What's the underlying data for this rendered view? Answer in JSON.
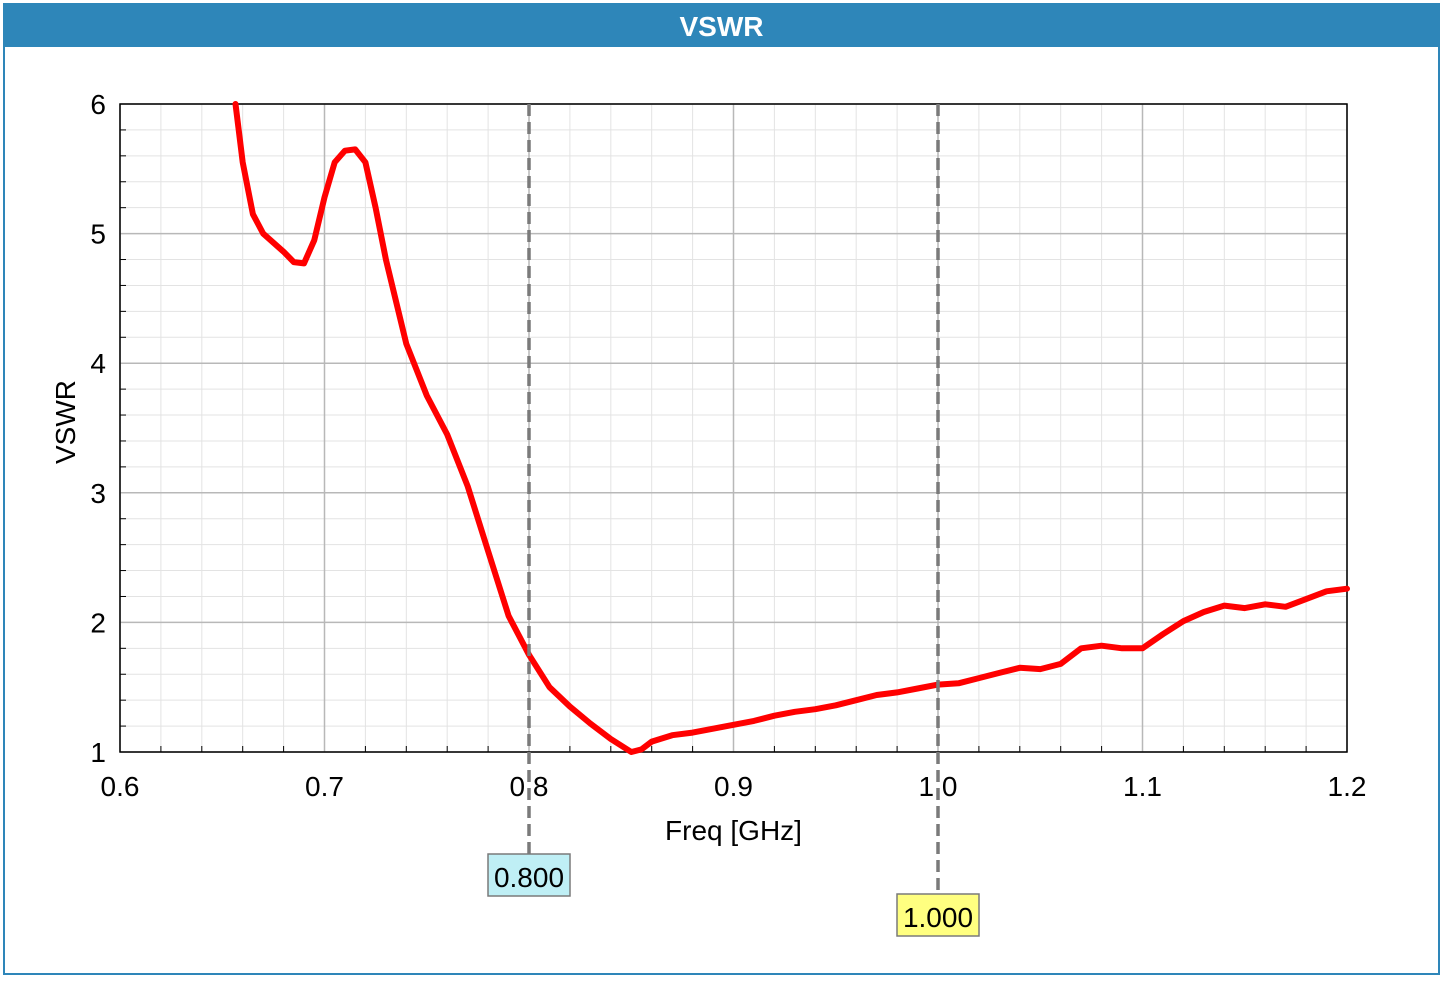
{
  "title": "VSWR",
  "chart_data": {
    "type": "line",
    "title": "VSWR",
    "xlabel": "Freq [GHz]",
    "ylabel": "VSWR",
    "xlim": [
      0.6,
      1.2
    ],
    "ylim": [
      1,
      6
    ],
    "x_ticks": [
      "0.6",
      "0.7",
      "0.8",
      "0.9",
      "1.0",
      "1.1",
      "1.2"
    ],
    "y_ticks": [
      "1",
      "2",
      "3",
      "4",
      "5",
      "6"
    ],
    "grid": true,
    "series_color": "#ff0000",
    "series": [
      {
        "x": [
          0.6565,
          0.66,
          0.665,
          0.67,
          0.68,
          0.685,
          0.69,
          0.695,
          0.7,
          0.705,
          0.71,
          0.715,
          0.72,
          0.725,
          0.73,
          0.74,
          0.75,
          0.76,
          0.77,
          0.78,
          0.79,
          0.8,
          0.81,
          0.82,
          0.83,
          0.84,
          0.85,
          0.855,
          0.86,
          0.87,
          0.88,
          0.89,
          0.9,
          0.91,
          0.92,
          0.93,
          0.94,
          0.95,
          0.96,
          0.97,
          0.98,
          0.99,
          1.0,
          1.01,
          1.02,
          1.03,
          1.04,
          1.05,
          1.06,
          1.07,
          1.08,
          1.09,
          1.1,
          1.11,
          1.12,
          1.13,
          1.14,
          1.15,
          1.16,
          1.17,
          1.18,
          1.19,
          1.2
        ],
        "y": [
          6.0,
          5.55,
          5.15,
          5.0,
          4.86,
          4.78,
          4.77,
          4.95,
          5.28,
          5.55,
          5.64,
          5.65,
          5.55,
          5.2,
          4.8,
          4.15,
          3.75,
          3.45,
          3.05,
          2.55,
          2.05,
          1.75,
          1.5,
          1.35,
          1.22,
          1.1,
          1.0,
          1.02,
          1.08,
          1.13,
          1.15,
          1.18,
          1.21,
          1.24,
          1.28,
          1.31,
          1.33,
          1.36,
          1.4,
          1.44,
          1.46,
          1.49,
          1.52,
          1.53,
          1.57,
          1.61,
          1.65,
          1.64,
          1.68,
          1.8,
          1.82,
          1.8,
          1.8,
          1.91,
          2.01,
          2.08,
          2.13,
          2.11,
          2.14,
          2.12,
          2.18,
          2.24,
          2.26
        ]
      }
    ],
    "markers": [
      {
        "x": 0.8,
        "label": "0.800",
        "color": "#bfeff5"
      },
      {
        "x": 1.0,
        "label": "1.000",
        "color": "#ffff80"
      }
    ]
  }
}
